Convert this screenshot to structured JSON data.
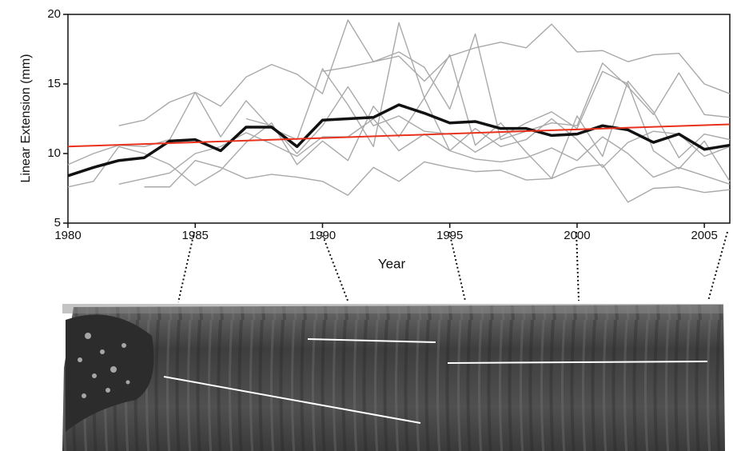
{
  "chart_data": {
    "type": "line",
    "xlabel": "Year",
    "ylabel": "Linear Extension (mm)",
    "x": [
      1980,
      1981,
      1982,
      1983,
      1984,
      1985,
      1986,
      1987,
      1988,
      1989,
      1990,
      1991,
      1992,
      1993,
      1994,
      1995,
      1996,
      1997,
      1998,
      1999,
      2000,
      2001,
      2002,
      2003,
      2004,
      2005,
      2006
    ],
    "xlim": [
      1980,
      2006
    ],
    "xticks": [
      1980,
      1985,
      1990,
      1995,
      2000,
      2005
    ],
    "ylim": [
      5,
      20
    ],
    "yticks": [
      5,
      10,
      15,
      20
    ],
    "series": [
      {
        "color": "#a9a9a9",
        "values": [
          null,
          null,
          12.0,
          12.4,
          13.7,
          14.4,
          13.4,
          15.5,
          16.4,
          15.7,
          14.3,
          19.6,
          16.6,
          17.0,
          15.2,
          17.0,
          17.6,
          18.0,
          17.6,
          19.3,
          17.3,
          17.4,
          16.6,
          17.1,
          17.2,
          15.0,
          14.3
        ]
      },
      {
        "color": "#a9a9a9",
        "values": [
          null,
          null,
          null,
          null,
          null,
          null,
          null,
          null,
          null,
          null,
          15.9,
          16.2,
          16.6,
          17.3,
          16.2,
          13.2,
          18.6,
          11.0,
          11.6,
          12.2,
          12.0,
          16.5,
          14.8,
          12.8,
          15.8,
          12.8,
          12.6
        ]
      },
      {
        "color": "#a9a9a9",
        "values": [
          9.2,
          10.0,
          10.6,
          10.5,
          11.0,
          14.4,
          11.2,
          13.8,
          11.8,
          11.0,
          16.1,
          13.5,
          10.5,
          19.4,
          14.0,
          10.2,
          11.8,
          10.5,
          11.0,
          12.5,
          11.0,
          9.0,
          10.8,
          11.6,
          11.4,
          9.8,
          10.5
        ]
      },
      {
        "color": "#a9a9a9",
        "values": [
          7.6,
          8.0,
          10.5,
          10.0,
          9.2,
          7.7,
          8.8,
          10.8,
          12.2,
          9.2,
          10.9,
          9.5,
          13.4,
          11.2,
          14.0,
          17.1,
          10.6,
          12.2,
          10.1,
          8.2,
          12.7,
          9.8,
          15.2,
          13.0,
          9.7,
          11.4,
          11.0
        ]
      },
      {
        "color": "#a9a9a9",
        "values": [
          null,
          null,
          7.8,
          8.2,
          8.6,
          10.0,
          10.5,
          11.5,
          10.7,
          9.8,
          11.2,
          11.2,
          12.5,
          10.2,
          11.4,
          10.2,
          9.6,
          9.4,
          9.7,
          10.4,
          9.5,
          11.2,
          10.0,
          8.3,
          9.0,
          8.4,
          7.8
        ]
      },
      {
        "color": "#a9a9a9",
        "values": [
          null,
          null,
          null,
          7.6,
          7.6,
          9.5,
          9.0,
          8.2,
          8.5,
          8.3,
          8.0,
          7.0,
          9.0,
          8.0,
          9.4,
          9.0,
          8.7,
          8.8,
          8.1,
          8.2,
          9.0,
          9.2,
          6.5,
          7.5,
          7.6,
          7.2,
          7.4
        ]
      },
      {
        "color": "#a9a9a9",
        "values": [
          null,
          null,
          null,
          null,
          null,
          null,
          null,
          12.5,
          12.0,
          10.0,
          12.0,
          14.8,
          12.0,
          12.7,
          11.6,
          11.4,
          10.1,
          11.2,
          12.2,
          13.0,
          11.8,
          15.9,
          15.0,
          10.2,
          8.9,
          10.9,
          8.0
        ]
      },
      {
        "color": "#111111",
        "width": 3.5,
        "values": [
          8.4,
          9.0,
          9.5,
          9.7,
          10.9,
          11.0,
          10.2,
          11.9,
          11.9,
          10.5,
          12.4,
          12.5,
          12.6,
          13.5,
          12.9,
          12.2,
          12.3,
          11.8,
          11.8,
          11.3,
          11.4,
          12.0,
          11.7,
          10.8,
          11.4,
          10.3,
          10.6
        ]
      },
      {
        "color": "#e8321e",
        "width": 2,
        "x": [
          1980,
          2006
        ],
        "values": [
          10.5,
          12.1
        ]
      }
    ]
  }
}
